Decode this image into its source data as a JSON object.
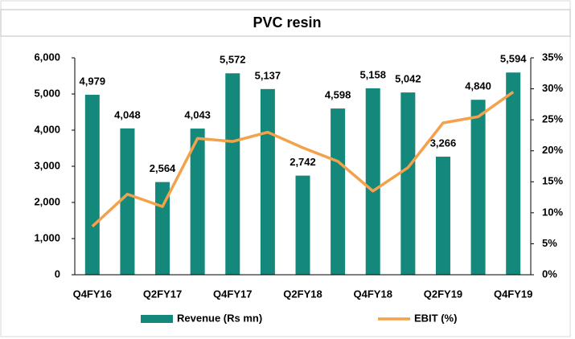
{
  "chart_data": {
    "type": "bar_line",
    "title": "PVC resin",
    "categories": [
      "Q4FY16",
      null,
      "Q2FY17",
      null,
      "Q4FY17",
      null,
      "Q2FY18",
      null,
      "Q4FY18",
      null,
      "Q2FY19",
      null,
      "Q4FY19"
    ],
    "series": [
      {
        "name": "Revenue (Rs mn)",
        "type": "bar",
        "color": "#13887b",
        "values": [
          4979,
          4048,
          2564,
          4043,
          5572,
          5137,
          2742,
          4598,
          5158,
          5042,
          3266,
          4840,
          5594
        ],
        "value_labels": [
          "4,979",
          "4,048",
          "2,564",
          "4,043",
          "5,572",
          "5,137",
          "2,742",
          "4,598",
          "5,158",
          "5,042",
          "3,266",
          "4,840",
          "5,594"
        ]
      },
      {
        "name": "EBIT (%)",
        "type": "line",
        "axis": "y2",
        "color": "#f4a14c",
        "values": [
          7.8,
          13,
          11,
          22,
          21.5,
          23,
          20.5,
          18.3,
          13.5,
          17.3,
          24.5,
          25.5,
          29.5
        ]
      }
    ],
    "ylim": [
      0,
      6000
    ],
    "yticks": [
      0,
      {
        "value": 1000,
        "label": "1,000"
      },
      {
        "value": 2000,
        "label": "2,000"
      },
      {
        "value": 3000,
        "label": "3,000"
      },
      {
        "value": 4000,
        "label": "4,000"
      },
      {
        "value": 5000,
        "label": "5,000"
      },
      {
        "value": 6000,
        "label": "6,000"
      }
    ],
    "y2lim": [
      0,
      35
    ],
    "y2ticks": [
      {
        "value": 0,
        "label": "0%"
      },
      {
        "value": 5,
        "label": "5%"
      },
      {
        "value": 10,
        "label": "10%"
      },
      {
        "value": 15,
        "label": "15%"
      },
      {
        "value": 20,
        "label": "20%"
      },
      {
        "value": 25,
        "label": "25%"
      },
      {
        "value": 30,
        "label": "30%"
      },
      {
        "value": 35,
        "label": "35%"
      }
    ],
    "legend": "bottom"
  }
}
